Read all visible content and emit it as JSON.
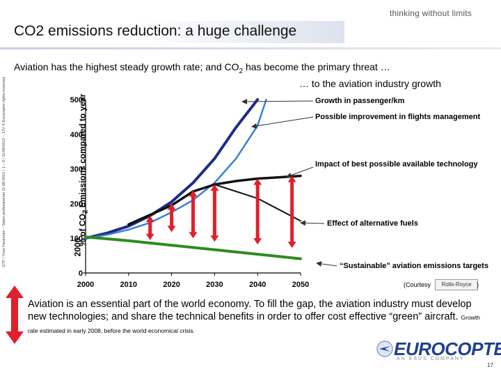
{
  "header": {
    "tagline": "thinking without limits",
    "title": "CO2 emissions reduction: a huge challenge",
    "subtitle_main": "Aviation has the highest steady growth rate; and CO",
    "subtitle_sub": "2",
    "subtitle_rest": " has become the primary threat …",
    "subtitle_line2": "… to the aviation industry growth"
  },
  "sidebar_text": "ETF / Yves Favennec – Salon professionnel 11-09-2012 / 1 – 0 / 11/09/2012 – 17V © Eurocopter rights reserved",
  "chart_data": {
    "type": "line",
    "y_axis_label_main": "% of CO",
    "y_axis_label_sub": "2",
    "y_axis_label_rest": " Emissions compared to year",
    "y_axis_label_line2": "2000",
    "x_ticks": [
      "2000",
      "2010",
      "2020",
      "2030",
      "2040",
      "2050"
    ],
    "y_ticks": [
      "0",
      "100",
      "200",
      "300",
      "400",
      "500"
    ],
    "xlim": [
      2000,
      2050
    ],
    "ylim": [
      0,
      500
    ],
    "series": [
      {
        "name": "Growth in passenger/km",
        "color": "#1f2a8a",
        "x": [
          2000,
          2005,
          2010,
          2015,
          2020,
          2025,
          2030,
          2035,
          2040
        ],
        "y": [
          100,
          115,
          135,
          165,
          205,
          260,
          330,
          420,
          500
        ]
      },
      {
        "name": "Possible improvement in flights management",
        "color": "#3a7fd8",
        "x": [
          2000,
          2005,
          2010,
          2015,
          2020,
          2025,
          2030,
          2035,
          2040,
          2042
        ],
        "y": [
          100,
          110,
          125,
          145,
          175,
          210,
          260,
          330,
          425,
          500
        ]
      },
      {
        "name": "Impact of best possible available technology",
        "color": "#111111",
        "x": [
          2010,
          2020,
          2025,
          2030,
          2035,
          2040,
          2045,
          2050
        ],
        "y": [
          140,
          195,
          235,
          255,
          265,
          272,
          276,
          280
        ]
      },
      {
        "name": "Effect of alternative fuels",
        "color": "#111111",
        "x": [
          2030,
          2040,
          2050
        ],
        "y": [
          255,
          215,
          150
        ]
      },
      {
        "name": "“Sustainable” aviation emissions targets",
        "color": "#2e8b1f",
        "x": [
          2000,
          2010,
          2020,
          2030,
          2040,
          2050
        ],
        "y": [
          104,
          93,
          80,
          67,
          54,
          41
        ]
      }
    ],
    "arrows_x": [
      2015,
      2020,
      2025,
      2030,
      2040,
      2048
    ],
    "arrow_color": "#e0202a"
  },
  "annotations": {
    "growth": "Growth in passenger/km",
    "flights": "Possible improvement in flights management",
    "technology": "Impact of best possible available technology",
    "fuels": "Effect of alternative fuels",
    "sustainable": "“Sustainable” aviation emissions targets"
  },
  "courtesy": {
    "label_open": "(Courtesy",
    "label_close": ")",
    "logo_text": "Rolls-Royce"
  },
  "bottom": {
    "text": "Aviation is an essential part of the world economy. To fill the gap, the aviation industry must develop new technologies; and share the technical benefits in order to offer cost effective “green” aircraft.",
    "note": "Growth rate estimated in early 2008, before the world economical crisis."
  },
  "footer": {
    "logo": "EUROCOPTER",
    "logo_sub": "AN EADS COMPANY",
    "page": "17"
  }
}
